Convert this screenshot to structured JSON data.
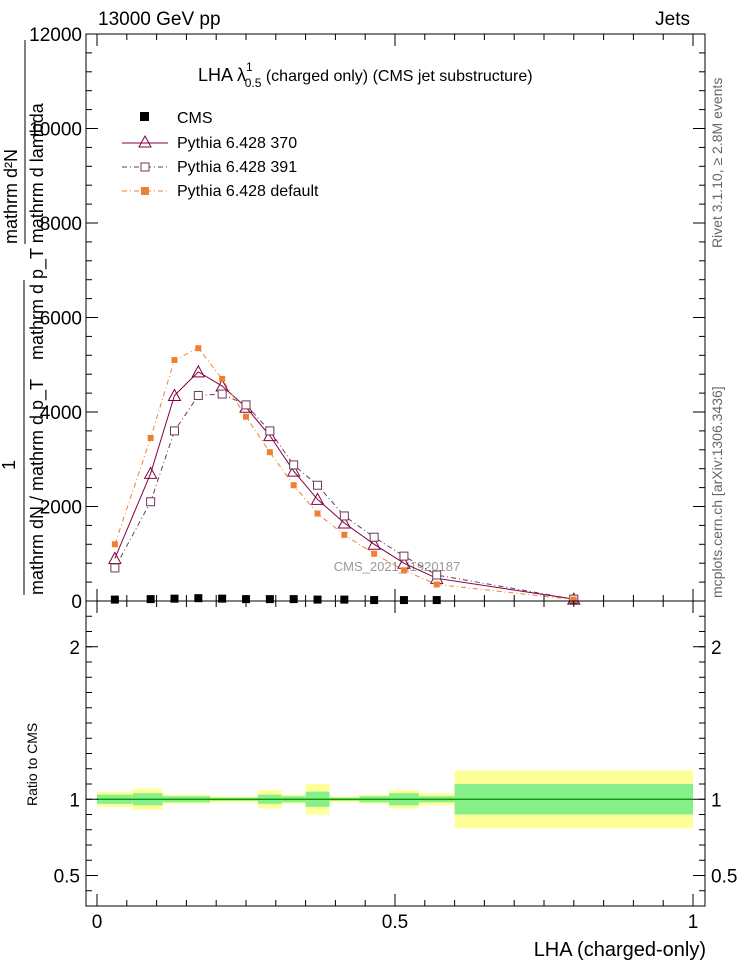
{
  "header": {
    "left": "13000 GeV pp",
    "right": "Jets"
  },
  "side": {
    "rivet": "Rivet 3.1.10, ≥ 2.8M events",
    "mcplots": "mcplots.cern.ch [arXiv:1306.3436]"
  },
  "watermark": "CMS_2021_I1920187",
  "title": {
    "main": "LHA λ",
    "sup": "1",
    "sub": "0.5",
    "rest": " (charged only) (CMS jet substructure)"
  },
  "labels": {
    "ylabel_top_num": "mathrm d²N",
    "ylabel_top_den": "mathrm d p_T mathrm d lambda",
    "ylabel_one": "1",
    "ylabel_low": "mathrm dN / mathrm d p_T",
    "ratio_ylabel": "Ratio to CMS",
    "xlabel": "LHA (charged-only)"
  },
  "legend": [
    {
      "name": "CMS",
      "color": "#000000",
      "marker": "filled-square"
    },
    {
      "name": "Pythia 6.428 370",
      "color": "#800040",
      "marker": "open-triangle"
    },
    {
      "name": "Pythia 6.428 391",
      "color": "#6b3a5a",
      "marker": "open-square"
    },
    {
      "name": "Pythia 6.428 default",
      "color": "#f08030",
      "marker": "filled-square"
    }
  ],
  "chart_data": {
    "type": "line",
    "xlabel": "LHA (charged-only)",
    "xlim": [
      0,
      1
    ],
    "ylim": [
      0,
      12000
    ],
    "yticks": [
      "0",
      "2000",
      "4000",
      "6000",
      "8000",
      "10000",
      "12000"
    ],
    "xticks": [
      "0",
      "0.5",
      "1"
    ],
    "x": [
      0.03,
      0.09,
      0.13,
      0.17,
      0.21,
      0.25,
      0.29,
      0.33,
      0.37,
      0.415,
      0.465,
      0.515,
      0.57,
      0.8
    ],
    "series": [
      {
        "name": "CMS",
        "values": [
          30,
          40,
          50,
          60,
          50,
          40,
          40,
          40,
          30,
          30,
          20,
          20,
          20,
          10
        ]
      },
      {
        "name": "Pythia 6.428 370",
        "values": [
          900,
          2700,
          4350,
          4850,
          4550,
          4100,
          3500,
          2750,
          2150,
          1650,
          1200,
          800,
          480,
          40
        ]
      },
      {
        "name": "Pythia 6.428 391",
        "values": [
          700,
          2100,
          3600,
          4350,
          4380,
          4150,
          3600,
          2880,
          2450,
          1800,
          1350,
          950,
          550,
          40
        ]
      },
      {
        "name": "Pythia 6.428 default",
        "values": [
          1200,
          3450,
          5100,
          5350,
          4700,
          3900,
          3150,
          2450,
          1850,
          1400,
          1000,
          650,
          350,
          30
        ]
      }
    ],
    "ratio": {
      "ylabel": "Ratio to CMS",
      "ylim": [
        0.3,
        2.3
      ],
      "yticks": [
        "0.5",
        "1",
        "2"
      ],
      "bins": [
        [
          0,
          0.06
        ],
        [
          0.06,
          0.11
        ],
        [
          0.11,
          0.19
        ],
        [
          0.19,
          0.27
        ],
        [
          0.27,
          0.31
        ],
        [
          0.31,
          0.35
        ],
        [
          0.35,
          0.39
        ],
        [
          0.39,
          0.44
        ],
        [
          0.44,
          0.49
        ],
        [
          0.49,
          0.54
        ],
        [
          0.54,
          0.6
        ],
        [
          0.6,
          1.0
        ]
      ],
      "stat_band": [
        0.03,
        0.04,
        0.02,
        0.01,
        0.03,
        0.02,
        0.05,
        0.01,
        0.02,
        0.04,
        0.02,
        0.1
      ],
      "total_band": [
        0.05,
        0.07,
        0.03,
        0.02,
        0.06,
        0.03,
        0.1,
        0.02,
        0.03,
        0.06,
        0.04,
        0.19
      ]
    }
  },
  "colors": {
    "stat_band": "#88f088",
    "total_band": "#ffff99",
    "ref_line": "#008800"
  }
}
